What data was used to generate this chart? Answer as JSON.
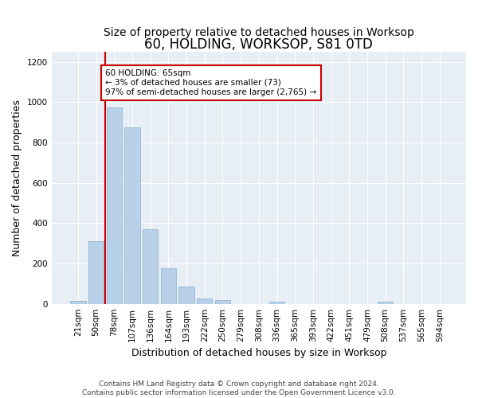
{
  "title": "60, HOLDING, WORKSOP, S81 0TD",
  "subtitle": "Size of property relative to detached houses in Worksop",
  "xlabel": "Distribution of detached houses by size in Worksop",
  "ylabel": "Number of detached properties",
  "categories": [
    "21sqm",
    "50sqm",
    "78sqm",
    "107sqm",
    "136sqm",
    "164sqm",
    "193sqm",
    "222sqm",
    "250sqm",
    "279sqm",
    "308sqm",
    "336sqm",
    "365sqm",
    "393sqm",
    "422sqm",
    "451sqm",
    "479sqm",
    "508sqm",
    "537sqm",
    "565sqm",
    "594sqm"
  ],
  "values": [
    13,
    310,
    975,
    875,
    370,
    175,
    85,
    25,
    20,
    0,
    0,
    10,
    0,
    0,
    0,
    0,
    0,
    12,
    0,
    0,
    0
  ],
  "bar_color": "#b8d0e8",
  "bar_edge_color": "#8ab0cc",
  "vline_color": "#cc0000",
  "vline_x": 1.5,
  "annotation_text": "60 HOLDING: 65sqm\n← 3% of detached houses are smaller (73)\n97% of semi-detached houses are larger (2,765) →",
  "annotation_box_color": "#ffffff",
  "annotation_box_edge_color": "#cc0000",
  "ylim": [
    0,
    1250
  ],
  "yticks": [
    0,
    200,
    400,
    600,
    800,
    1000,
    1200
  ],
  "background_color": "#e8eef5",
  "footer_text": "Contains HM Land Registry data © Crown copyright and database right 2024.\nContains public sector information licensed under the Open Government Licence v3.0.",
  "title_fontsize": 12,
  "subtitle_fontsize": 10,
  "xlabel_fontsize": 9,
  "ylabel_fontsize": 9,
  "tick_fontsize": 7.5,
  "footer_fontsize": 6.5
}
